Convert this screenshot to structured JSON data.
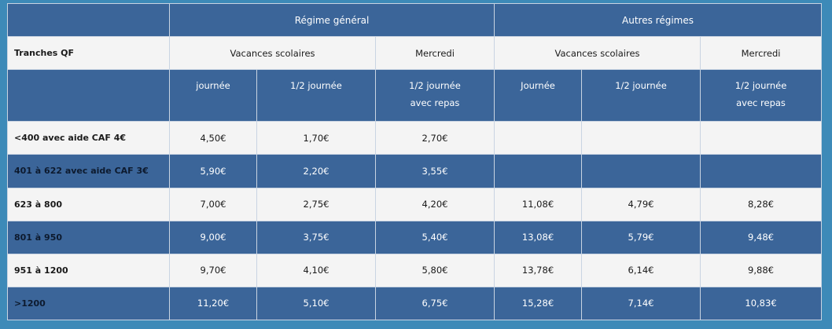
{
  "header": {
    "group_general": "Régime général",
    "group_other": "Autres régimes",
    "row_label": "Tranches QF",
    "vacances": "Vacances scolaires",
    "mercredi": "Mercredi",
    "general_sub": [
      "journée",
      "1/2 journée",
      "1/2 journée",
      "avec repas"
    ],
    "other_sub": [
      "Journée",
      "1/2 journée",
      "1/2 journée",
      "avec repas"
    ]
  },
  "rows": [
    {
      "label": "<400 avec aide CAF 4€",
      "values": [
        "4,50€",
        "1,70€",
        "2,70€",
        "",
        "",
        ""
      ]
    },
    {
      "label": "401 à 622 avec aide CAF 3€",
      "values": [
        "5,90€",
        "2,20€",
        "3,55€",
        "",
        "",
        ""
      ]
    },
    {
      "label": "623 à 800",
      "values": [
        "7,00€",
        "2,75€",
        "4,20€",
        "11,08€",
        "4,79€",
        "8,28€"
      ]
    },
    {
      "label": "801 à 950",
      "values": [
        "9,00€",
        "3,75€",
        "5,40€",
        "13,08€",
        "5,79€",
        "9,48€"
      ]
    },
    {
      "label": "951 à 1200",
      "values": [
        "9,70€",
        "4,10€",
        "5,80€",
        "13,78€",
        "6,14€",
        "9,88€"
      ]
    },
    {
      "label": ">1200",
      "values": [
        "11,20€",
        "5,10€",
        "6,75€",
        "15,28€",
        "7,14€",
        "10,83€"
      ]
    }
  ],
  "colors": {
    "background": "#3d8ab8",
    "header_blue": "#3b6599",
    "row_light": "#f4f4f4",
    "border": "#c9d4e2"
  }
}
